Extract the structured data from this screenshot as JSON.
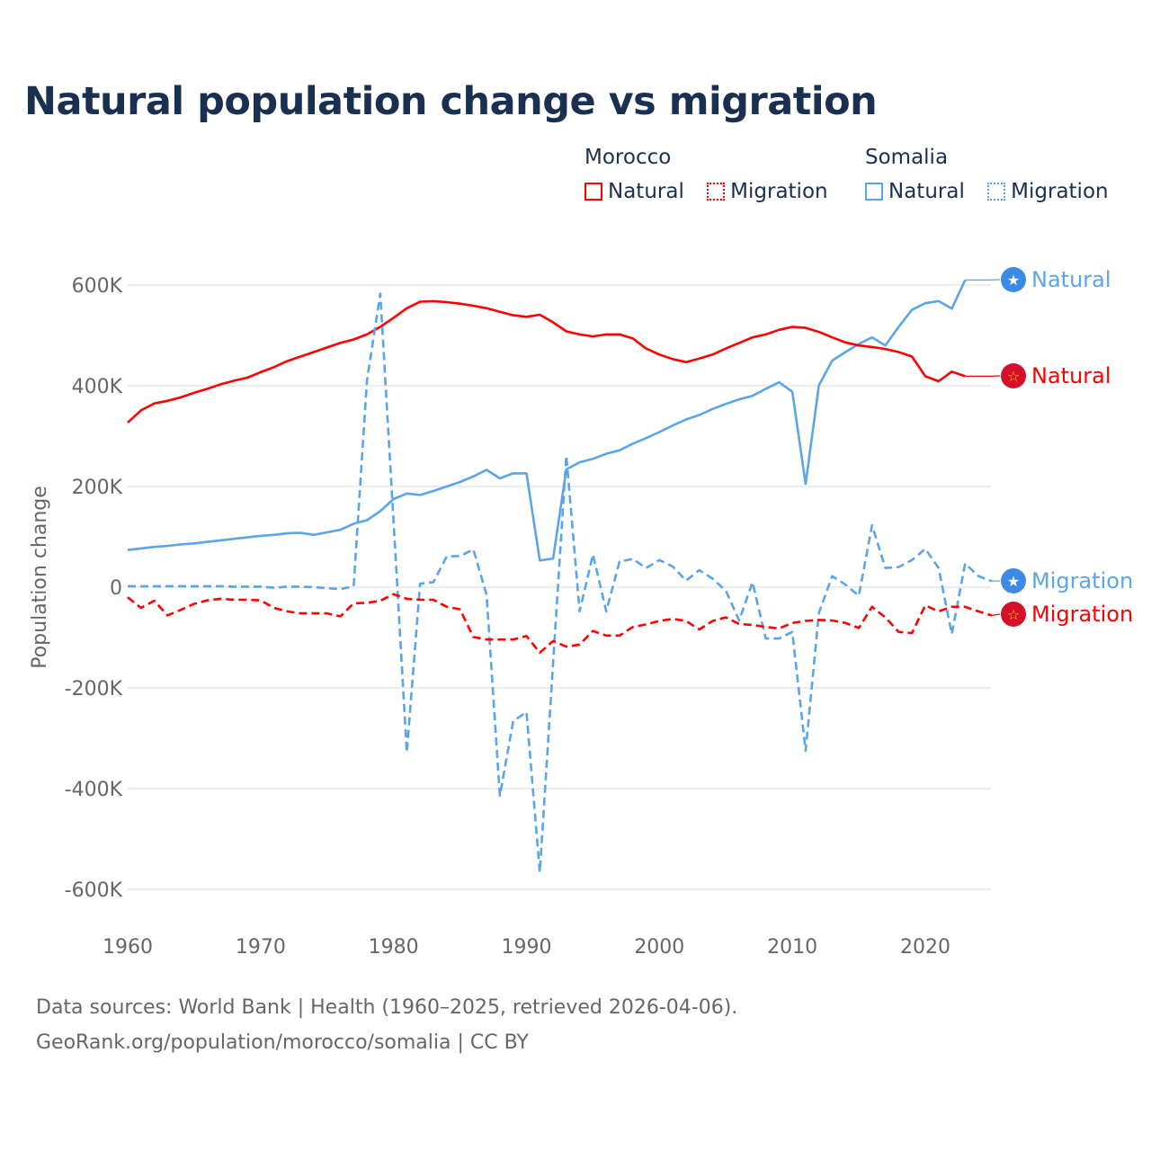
{
  "colors": {
    "morocco": "#ff0000",
    "somalia": "#5aa5ea",
    "text": "#1a3050",
    "grid": "#e6e6e6",
    "axis_text": "#666666",
    "somalia_flag": "#3b8be6",
    "morocco_flag": "#d4102a",
    "morocco_star": "#f5c518"
  },
  "chart_data": {
    "type": "line",
    "title": "Natural population change vs migration",
    "xlabel": "",
    "ylabel": "Population change",
    "xlim": [
      1960,
      2025
    ],
    "ylim": [
      -600000,
      600000
    ],
    "grid": true,
    "x_ticks": [
      "1960",
      "1970",
      "1980",
      "1990",
      "2000",
      "2010",
      "2020"
    ],
    "y_ticks": [
      {
        "value": 600000,
        "label": "600K"
      },
      {
        "value": 400000,
        "label": "400K"
      },
      {
        "value": 200000,
        "label": "200K"
      },
      {
        "value": 0,
        "label": "0"
      },
      {
        "value": -200000,
        "label": "-200K"
      },
      {
        "value": -400000,
        "label": "-400K"
      },
      {
        "value": -600000,
        "label": "-600K"
      }
    ],
    "legend": {
      "placement": "top-right",
      "groups": [
        {
          "name": "Morocco",
          "items": [
            {
              "label": "Natural",
              "style": "solid",
              "color_key": "morocco"
            },
            {
              "label": "Migration",
              "style": "dotted",
              "color_key": "morocco"
            }
          ]
        },
        {
          "name": "Somalia",
          "items": [
            {
              "label": "Natural",
              "style": "solid",
              "color_key": "somalia"
            },
            {
              "label": "Migration",
              "style": "dotted",
              "color_key": "somalia"
            }
          ]
        }
      ]
    },
    "series": [
      {
        "name": "Somalia Natural",
        "country": "Somalia",
        "label": "Natural",
        "flag": "somalia",
        "dashed": false,
        "start": 1960,
        "values": [
          74000,
          77000,
          80000,
          82000,
          85000,
          87000,
          90000,
          93000,
          96000,
          99000,
          102000,
          104000,
          107000,
          108000,
          104000,
          109000,
          114000,
          126000,
          133000,
          151000,
          175000,
          186000,
          183000,
          191000,
          200000,
          209000,
          220000,
          233000,
          216000,
          226000,
          226000,
          53000,
          57000,
          234000,
          248000,
          255000,
          265000,
          272000,
          285000,
          296000,
          308000,
          321000,
          333000,
          342000,
          354000,
          364000,
          373000,
          380000,
          394000,
          407000,
          388000,
          205000,
          401000,
          450000,
          467000,
          483000,
          496000,
          480000,
          517000,
          551000,
          564000,
          568000,
          553000,
          610000
        ]
      },
      {
        "name": "Morocco Natural",
        "country": "Morocco",
        "label": "Natural",
        "flag": "morocco",
        "dashed": false,
        "start": 1960,
        "values": [
          327000,
          351000,
          365000,
          370000,
          377000,
          386000,
          394000,
          403000,
          410000,
          416000,
          427000,
          437000,
          449000,
          458000,
          467000,
          476000,
          485000,
          492000,
          502000,
          517000,
          535000,
          554000,
          567000,
          568000,
          566000,
          563000,
          559000,
          554000,
          547000,
          540000,
          537000,
          541000,
          526000,
          508000,
          502000,
          498000,
          502000,
          502000,
          494000,
          474000,
          462000,
          453000,
          447000,
          454000,
          462000,
          474000,
          485000,
          496000,
          502000,
          511000,
          517000,
          515000,
          507000,
          496000,
          486000,
          480000,
          477000,
          473000,
          467000,
          458000,
          419000,
          409000,
          428000,
          419000
        ]
      },
      {
        "name": "Somalia Migration",
        "country": "Somalia",
        "label": "Migration",
        "flag": "somalia",
        "dashed": true,
        "start": 1960,
        "values": [
          2000,
          2000,
          2000,
          2000,
          2000,
          2000,
          2000,
          2000,
          1000,
          1000,
          1000,
          -1000,
          1000,
          1000,
          0,
          -2000,
          -4000,
          2000,
          410000,
          583000,
          130000,
          -328000,
          7000,
          10000,
          61000,
          62000,
          75000,
          -15000,
          -414000,
          -266000,
          -248000,
          -566000,
          -150000,
          261000,
          -48000,
          65000,
          -48000,
          51000,
          56000,
          38000,
          54000,
          41000,
          13000,
          34000,
          17000,
          -7000,
          -66000,
          10000,
          -102000,
          -102000,
          -89000,
          -325000,
          -51000,
          22000,
          5000,
          -17000,
          123000,
          38000,
          40000,
          54000,
          76000,
          38000,
          -93000,
          47000,
          22000,
          12000
        ]
      },
      {
        "name": "Morocco Migration",
        "country": "Morocco",
        "label": "Migration",
        "flag": "morocco",
        "dashed": true,
        "start": 1960,
        "values": [
          -20000,
          -41000,
          -27000,
          -56000,
          -45000,
          -33000,
          -26000,
          -23000,
          -25000,
          -25000,
          -26000,
          -41000,
          -48000,
          -52000,
          -52000,
          -52000,
          -58000,
          -32000,
          -31000,
          -27000,
          -14000,
          -23000,
          -25000,
          -25000,
          -39000,
          -44000,
          -99000,
          -104000,
          -104000,
          -104000,
          -97000,
          -130000,
          -107000,
          -118000,
          -114000,
          -87000,
          -96000,
          -96000,
          -79000,
          -74000,
          -67000,
          -63000,
          -67000,
          -84000,
          -67000,
          -60000,
          -73000,
          -75000,
          -79000,
          -82000,
          -71000,
          -67000,
          -65000,
          -66000,
          -71000,
          -81000,
          -39000,
          -60000,
          -89000,
          -91000,
          -36000,
          -48000,
          -39000,
          -39000,
          -48000,
          -56000
        ]
      }
    ]
  },
  "footer": {
    "line1": "Data sources: World Bank | Health (1960–2025, retrieved 2026-04-06).",
    "line2": "GeoRank.org/population/morocco/somalia | CC BY"
  }
}
